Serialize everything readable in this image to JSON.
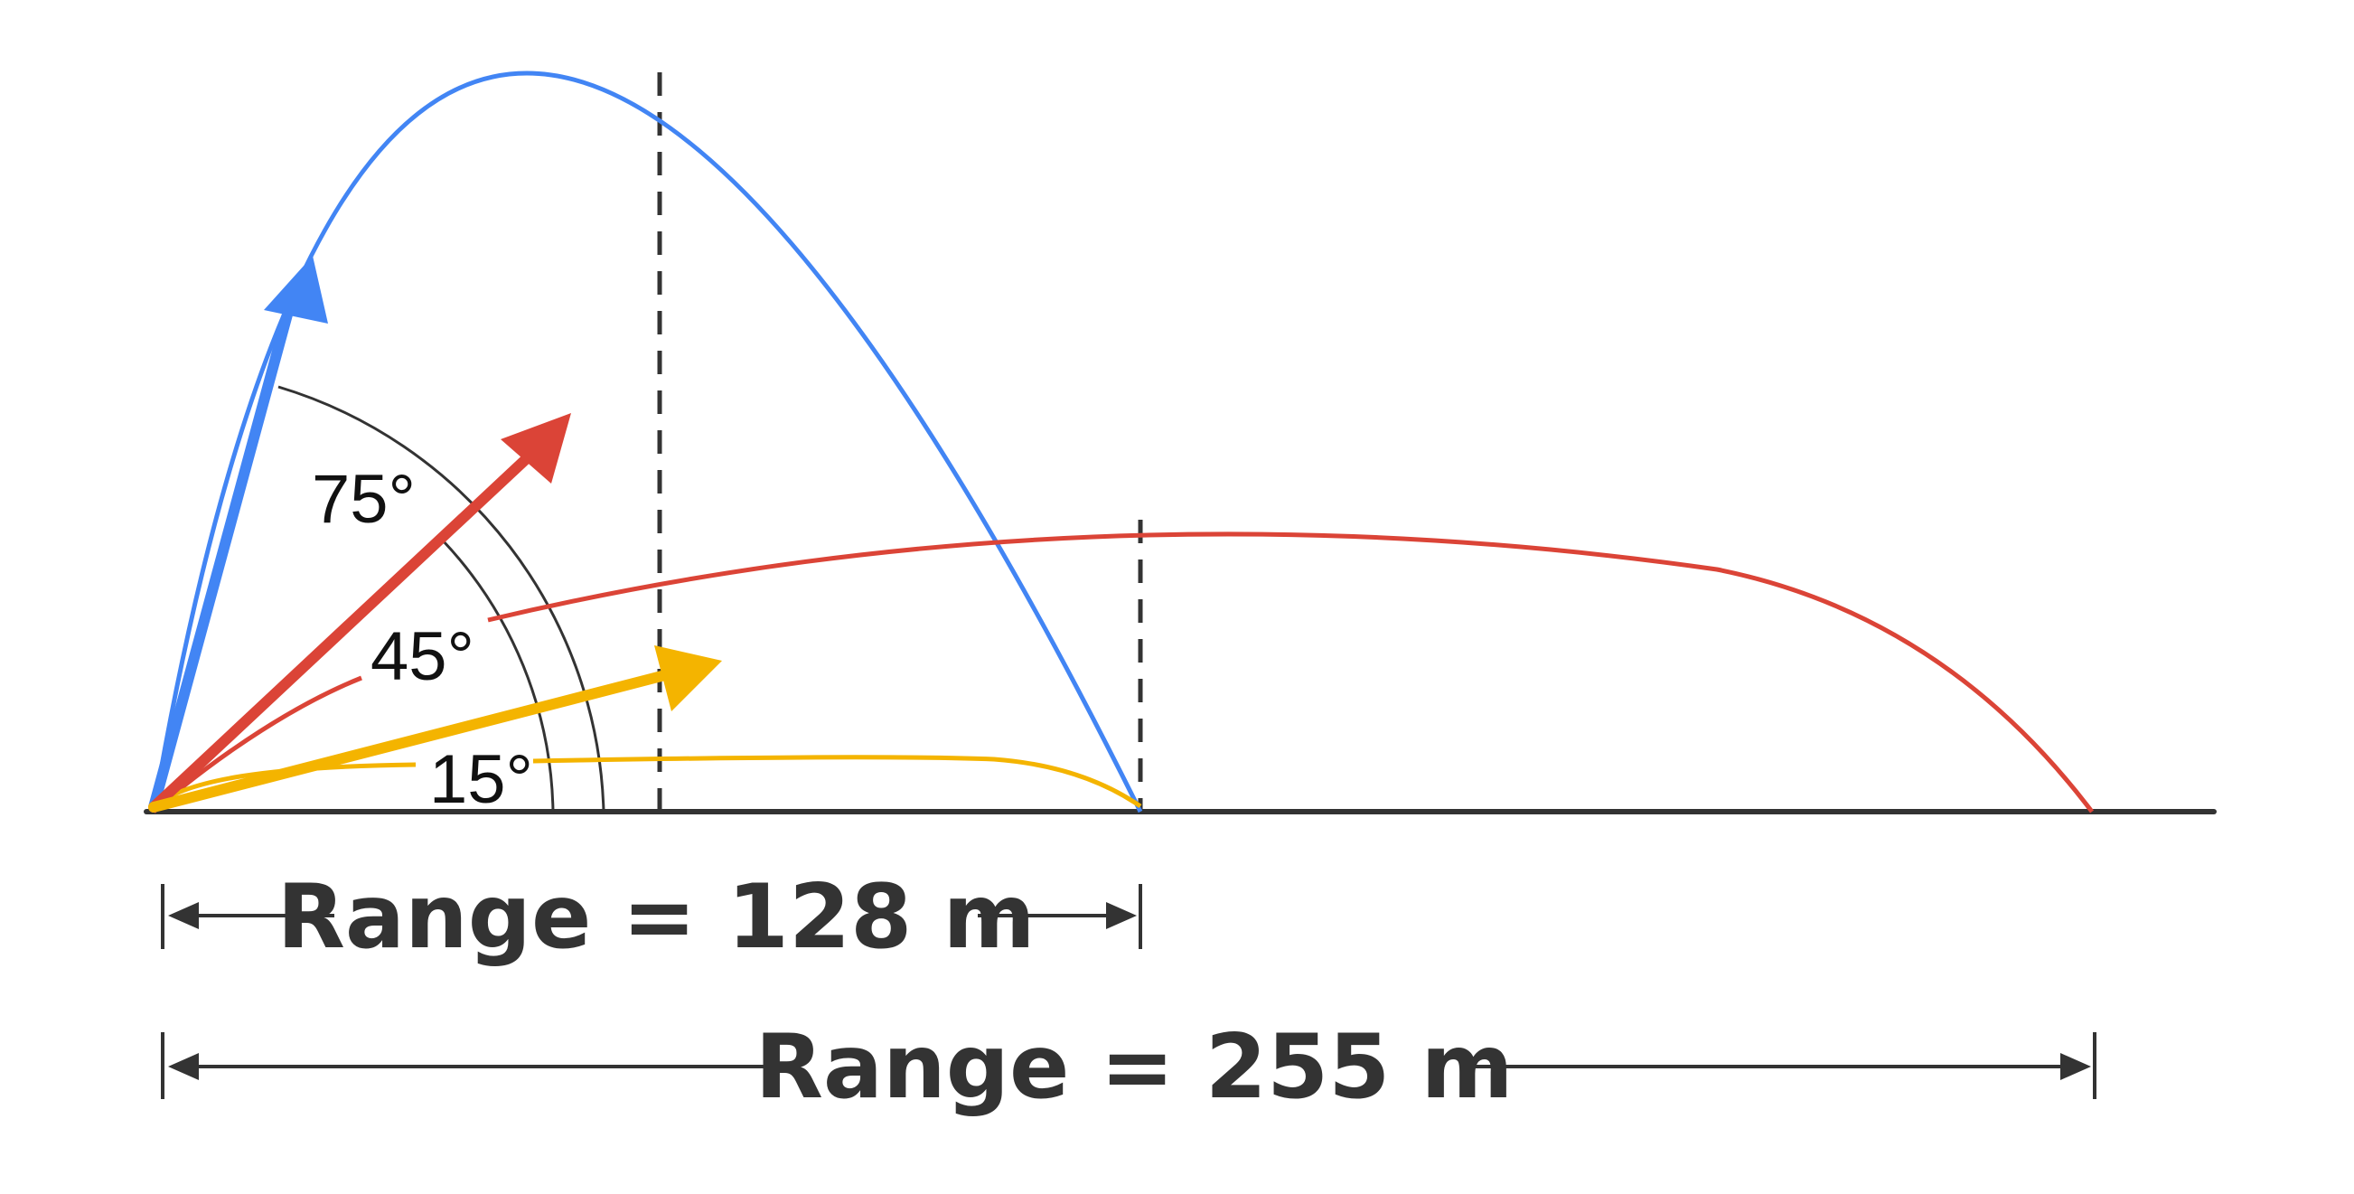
{
  "colors": {
    "blue": "#4285F4",
    "red": "#DB4437",
    "yellow": "#F4B400",
    "ink": "#333333"
  },
  "angles": {
    "a75": "75°",
    "a45": "45°",
    "a15": "15°"
  },
  "ranges": {
    "short": "Range = 128 m",
    "long": "Range = 255 m"
  }
}
